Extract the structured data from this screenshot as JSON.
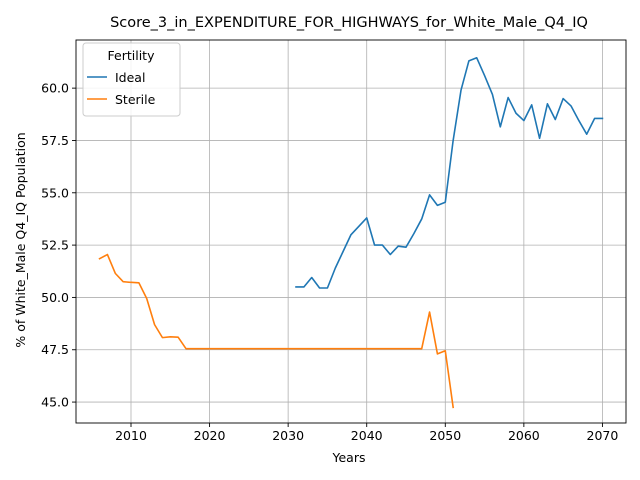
{
  "chart_data": {
    "type": "line",
    "title": "Score_3_in_EXPENDITURE_FOR_HIGHWAYS_for_White_Male_Q4_IQ",
    "xlabel": "Years",
    "ylabel": "% of White_Male Q4_IQ Population",
    "xlim": [
      2003,
      2073
    ],
    "ylim": [
      44.0,
      62.3
    ],
    "xticks": [
      "2010",
      "2020",
      "2030",
      "2040",
      "2050",
      "2060",
      "2070"
    ],
    "yticks": [
      "45.0",
      "47.5",
      "50.0",
      "52.5",
      "55.0",
      "57.5",
      "60.0"
    ],
    "grid": true,
    "legend_title": "Fertility",
    "legend_position": "top-left",
    "series": [
      {
        "name": "Ideal",
        "color": "#1f77b4",
        "x": [
          2031,
          2032,
          2033,
          2034,
          2035,
          2036,
          2037,
          2038,
          2039,
          2040,
          2041,
          2042,
          2043,
          2044,
          2045,
          2046,
          2047,
          2048,
          2049,
          2050,
          2051,
          2052,
          2053,
          2054,
          2055,
          2056,
          2057,
          2058,
          2059,
          2060,
          2061,
          2062,
          2063,
          2064,
          2065,
          2066,
          2067,
          2068,
          2069,
          2070
        ],
        "y": [
          50.5,
          50.5,
          50.95,
          50.45,
          50.45,
          51.4,
          52.2,
          53.0,
          53.4,
          53.8,
          52.5,
          52.5,
          52.05,
          52.45,
          52.4,
          53.05,
          53.75,
          54.9,
          54.4,
          54.55,
          57.5,
          59.9,
          61.3,
          61.45,
          60.6,
          59.7,
          58.15,
          59.55,
          58.8,
          58.45,
          59.2,
          57.6,
          59.25,
          58.5,
          59.5,
          59.15,
          58.45,
          57.8,
          58.55,
          58.55
        ]
      },
      {
        "name": "Sterile",
        "color": "#ff7f0e",
        "x": [
          2006,
          2007,
          2008,
          2009,
          2010,
          2011,
          2012,
          2013,
          2014,
          2015,
          2016,
          2017,
          2018,
          2019,
          2020,
          2021,
          2022,
          2023,
          2024,
          2025,
          2026,
          2027,
          2028,
          2029,
          2030,
          2031,
          2032,
          2033,
          2034,
          2035,
          2036,
          2037,
          2038,
          2039,
          2040,
          2041,
          2042,
          2043,
          2044,
          2045,
          2046,
          2047,
          2048,
          2049,
          2050,
          2051
        ],
        "y": [
          51.85,
          52.05,
          51.15,
          50.75,
          50.72,
          50.7,
          49.95,
          48.7,
          48.08,
          48.12,
          48.1,
          47.55,
          47.55,
          47.55,
          47.55,
          47.55,
          47.55,
          47.55,
          47.55,
          47.55,
          47.55,
          47.55,
          47.55,
          47.55,
          47.55,
          47.55,
          47.55,
          47.55,
          47.55,
          47.55,
          47.55,
          47.55,
          47.55,
          47.55,
          47.55,
          47.55,
          47.55,
          47.55,
          47.55,
          47.55,
          47.55,
          47.55,
          49.3,
          47.3,
          47.45,
          44.75
        ]
      }
    ]
  }
}
